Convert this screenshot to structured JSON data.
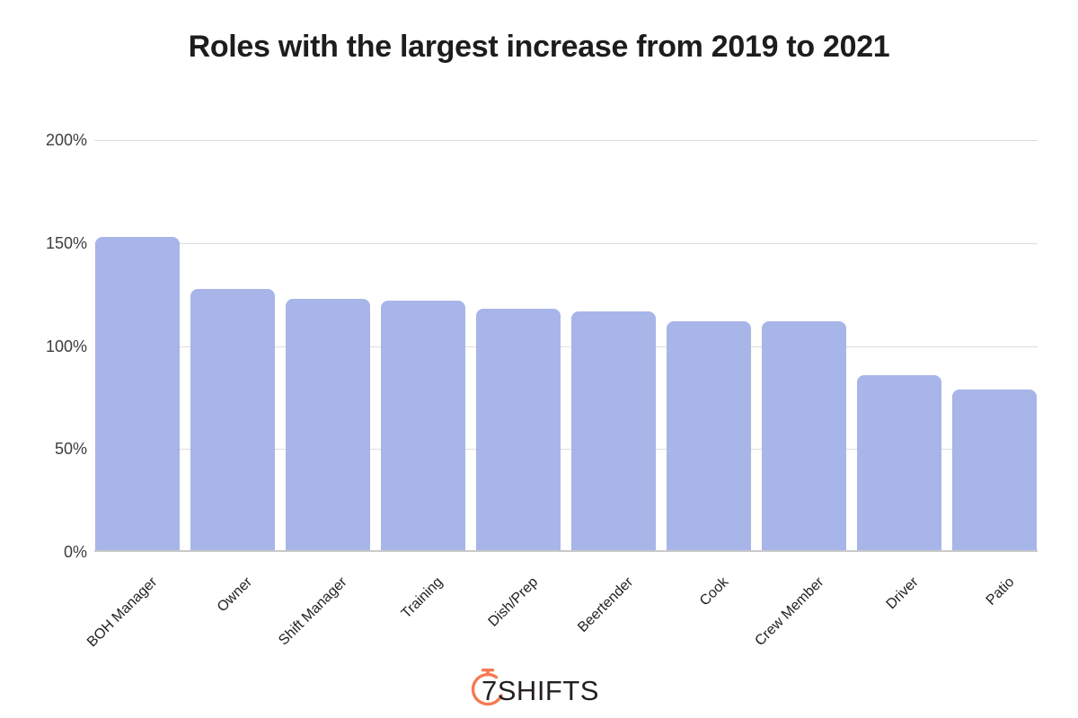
{
  "chart_data": {
    "type": "bar",
    "title": "Roles with the largest increase from 2019 to 2021",
    "categories": [
      "BOH Manager",
      "Owner",
      "Shift Manager",
      "Training",
      "Dish/Prep",
      "Beertender",
      "Cook",
      "Crew Member",
      "Driver",
      "Patio"
    ],
    "values": [
      152,
      127,
      122,
      121,
      117,
      116,
      111,
      111,
      85,
      78
    ],
    "unit": "%",
    "xlabel": "",
    "ylabel": "",
    "ylim": [
      0,
      200
    ],
    "yticks": [
      0,
      50,
      100,
      150,
      200
    ],
    "ytick_labels": [
      "0%",
      "50%",
      "100%",
      "150%",
      "200%"
    ],
    "grid": "horizontal",
    "legend": "none"
  },
  "colors": {
    "bar_fill": "#a7b5e8",
    "gridline": "#dedede",
    "axis_baseline": "#c9c9c9",
    "title_text": "#1d1d1d",
    "logo_orange": "#f57a52",
    "logo_text": "#231f20"
  },
  "footer": {
    "logo_text": "7SHIFTS",
    "logo_icon": "stopwatch-icon"
  }
}
